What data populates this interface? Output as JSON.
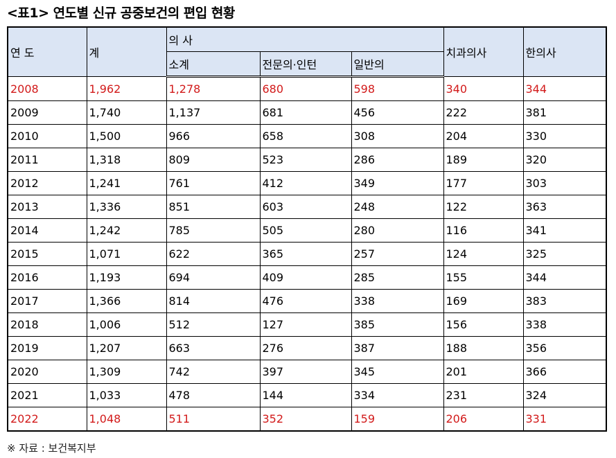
{
  "title": "<표1> 연도별 신규 공중보건의 편입 현황",
  "headers": {
    "year": "연 도",
    "total": "계",
    "doctor": "의 사",
    "subtotal": "소계",
    "specialist": "전문의·인턴",
    "general": "일반의",
    "dentist": "치과의사",
    "oriental": "한의사"
  },
  "rows": [
    {
      "year": "2008",
      "total": "1,962",
      "subtotal": "1,278",
      "specialist": "680",
      "general": "598",
      "dentist": "340",
      "oriental": "344"
    },
    {
      "year": "2009",
      "total": "1,740",
      "subtotal": "1,137",
      "specialist": "681",
      "general": "456",
      "dentist": "222",
      "oriental": "381"
    },
    {
      "year": "2010",
      "total": "1,500",
      "subtotal": "966",
      "specialist": "658",
      "general": "308",
      "dentist": "204",
      "oriental": "330"
    },
    {
      "year": "2011",
      "total": "1,318",
      "subtotal": "809",
      "specialist": "523",
      "general": "286",
      "dentist": "189",
      "oriental": "320"
    },
    {
      "year": "2012",
      "total": "1,241",
      "subtotal": "761",
      "specialist": "412",
      "general": "349",
      "dentist": "177",
      "oriental": "303"
    },
    {
      "year": "2013",
      "total": "1,336",
      "subtotal": "851",
      "specialist": "603",
      "general": "248",
      "dentist": "122",
      "oriental": "363"
    },
    {
      "year": "2014",
      "total": "1,242",
      "subtotal": "785",
      "specialist": "505",
      "general": "280",
      "dentist": "116",
      "oriental": "341"
    },
    {
      "year": "2015",
      "total": "1,071",
      "subtotal": "622",
      "specialist": "365",
      "general": "257",
      "dentist": "124",
      "oriental": "325"
    },
    {
      "year": "2016",
      "total": "1,193",
      "subtotal": "694",
      "specialist": "409",
      "general": "285",
      "dentist": "155",
      "oriental": "344"
    },
    {
      "year": "2017",
      "total": "1,366",
      "subtotal": "814",
      "specialist": "476",
      "general": "338",
      "dentist": "169",
      "oriental": "383"
    },
    {
      "year": "2018",
      "total": "1,006",
      "subtotal": "512",
      "specialist": "127",
      "general": "385",
      "dentist": "156",
      "oriental": "338"
    },
    {
      "year": "2019",
      "total": "1,207",
      "subtotal": "663",
      "specialist": "276",
      "general": "387",
      "dentist": "188",
      "oriental": "356"
    },
    {
      "year": "2020",
      "total": "1,309",
      "subtotal": "742",
      "specialist": "397",
      "general": "345",
      "dentist": "201",
      "oriental": "366"
    },
    {
      "year": "2021",
      "total": "1,033",
      "subtotal": "478",
      "specialist": "144",
      "general": "334",
      "dentist": "231",
      "oriental": "324"
    },
    {
      "year": "2022",
      "total": "1,048",
      "subtotal": "511",
      "specialist": "352",
      "general": "159",
      "dentist": "206",
      "oriental": "331"
    }
  ],
  "highlight_color": "#d21a1a",
  "header_bg": "#dbe5f4",
  "note": "※ 자료 : 보건복지부"
}
